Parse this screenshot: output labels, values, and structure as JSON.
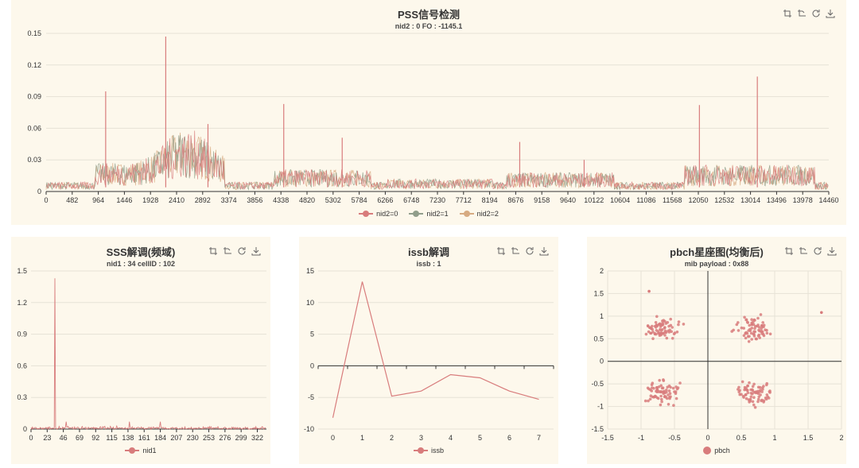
{
  "colors": {
    "s0": "#d87c7c",
    "s1": "#919e8b",
    "s2": "#d7ab82"
  },
  "chart_data": [
    {
      "id": "pss",
      "type": "line",
      "title": "PSS信号检测",
      "subtitle": "nid2 : 0 FO : -1145.1",
      "x_ticks": [
        "0",
        "482",
        "964",
        "1446",
        "1928",
        "2410",
        "2892",
        "3374",
        "3856",
        "4338",
        "4820",
        "5302",
        "5784",
        "6266",
        "6748",
        "7230",
        "7712",
        "8194",
        "8676",
        "9158",
        "9640",
        "10122",
        "10604",
        "11086",
        "11568",
        "12050",
        "12532",
        "13014",
        "13496",
        "13978",
        "14460"
      ],
      "y_ticks": [
        "0",
        "0.03",
        "0.06",
        "0.09",
        "0.12",
        "0.15"
      ],
      "xlim": [
        0,
        14460
      ],
      "ylim": [
        0,
        0.15
      ],
      "spikes": [
        {
          "x": 1100,
          "y": 0.095
        },
        {
          "x": 2210,
          "y": 0.147
        },
        {
          "x": 2990,
          "y": 0.064
        },
        {
          "x": 4390,
          "y": 0.083
        },
        {
          "x": 5470,
          "y": 0.051
        },
        {
          "x": 8750,
          "y": 0.047
        },
        {
          "x": 9940,
          "y": 0.03
        },
        {
          "x": 12070,
          "y": 0.082
        },
        {
          "x": 13140,
          "y": 0.109
        }
      ],
      "series": [
        {
          "name": "nid2=0"
        },
        {
          "name": "nid2=1"
        },
        {
          "name": "nid2=2"
        }
      ]
    },
    {
      "id": "sss",
      "type": "line",
      "title": "SSS解调(频域)",
      "subtitle": "nid1 : 34 cellID : 102",
      "x_ticks": [
        "0",
        "23",
        "46",
        "69",
        "92",
        "115",
        "138",
        "161",
        "184",
        "207",
        "230",
        "253",
        "276",
        "299",
        "322"
      ],
      "y_ticks": [
        "0",
        "0.3",
        "0.6",
        "0.9",
        "1.2",
        "1.5"
      ],
      "xlim": [
        0,
        335
      ],
      "ylim": [
        0,
        1.5
      ],
      "peak": {
        "x": 34,
        "y": 1.43
      },
      "series": [
        {
          "name": "nid1"
        }
      ]
    },
    {
      "id": "issb",
      "type": "line",
      "title": "issb解调",
      "subtitle": "issb : 1",
      "x": [
        0,
        1,
        2,
        3,
        4,
        5,
        6,
        7
      ],
      "y_ticks": [
        "-10",
        "-5",
        "0",
        "5",
        "10",
        "15"
      ],
      "ylim": [
        -10,
        15
      ],
      "series": [
        {
          "name": "issb",
          "values": [
            -8.2,
            13.3,
            -4.8,
            -4.0,
            -1.4,
            -1.9,
            -4.0,
            -5.3
          ]
        }
      ]
    },
    {
      "id": "pbch",
      "type": "scatter",
      "title": "pbch星座图(均衡后)",
      "subtitle": "mib payload : 0x88",
      "x_ticks": [
        "-1.5",
        "-1",
        "-0.5",
        "0",
        "0.5",
        "1",
        "1.5",
        "2"
      ],
      "y_ticks": [
        "-1.5",
        "-1",
        "-0.5",
        "0",
        "0.5",
        "1",
        "1.5",
        "2"
      ],
      "xlim": [
        -1.5,
        2
      ],
      "ylim": [
        -1.5,
        2
      ],
      "clusters": [
        {
          "x": -0.7,
          "y": 0.7
        },
        {
          "x": 0.7,
          "y": 0.7
        },
        {
          "x": -0.7,
          "y": -0.7
        },
        {
          "x": 0.7,
          "y": -0.7
        }
      ],
      "series": [
        {
          "name": "pbch"
        }
      ]
    }
  ]
}
